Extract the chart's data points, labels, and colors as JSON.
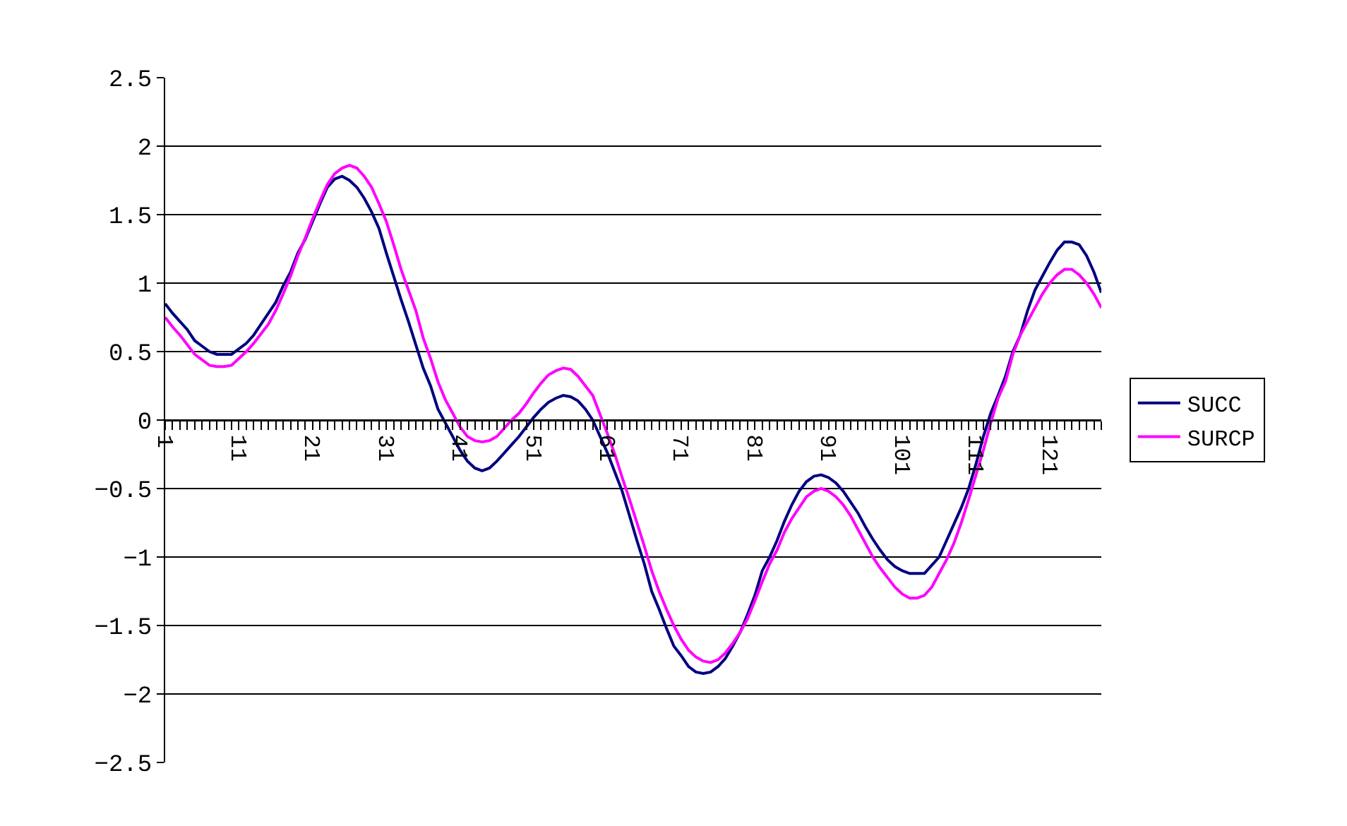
{
  "chart_data": {
    "type": "line",
    "categories": [
      "1",
      null,
      null,
      null,
      null,
      null,
      null,
      null,
      null,
      null,
      "11",
      null,
      null,
      null,
      null,
      null,
      null,
      null,
      null,
      null,
      "21",
      null,
      null,
      null,
      null,
      null,
      null,
      null,
      null,
      null,
      "31",
      null,
      null,
      null,
      null,
      null,
      null,
      null,
      null,
      null,
      "41",
      null,
      null,
      null,
      null,
      null,
      null,
      null,
      null,
      null,
      "51",
      null,
      null,
      null,
      null,
      null,
      null,
      null,
      null,
      null,
      "61",
      null,
      null,
      null,
      null,
      null,
      null,
      null,
      null,
      null,
      "71",
      null,
      null,
      null,
      null,
      null,
      null,
      null,
      null,
      null,
      "81",
      null,
      null,
      null,
      null,
      null,
      null,
      null,
      null,
      null,
      "91",
      null,
      null,
      null,
      null,
      null,
      null,
      null,
      null,
      null,
      "101",
      null,
      null,
      null,
      null,
      null,
      null,
      null,
      null,
      null,
      "111",
      null,
      null,
      null,
      null,
      null,
      null,
      null,
      null,
      null,
      "121",
      null,
      null,
      null,
      null,
      null,
      null,
      null
    ],
    "series": [
      {
        "name": "SUCC",
        "color": "#000080",
        "values": [
          0.85,
          0.78,
          0.72,
          0.66,
          0.58,
          0.54,
          0.5,
          0.48,
          0.48,
          0.48,
          0.52,
          0.56,
          0.62,
          0.7,
          0.78,
          0.86,
          0.98,
          1.08,
          1.22,
          1.32,
          1.45,
          1.58,
          1.7,
          1.76,
          1.78,
          1.75,
          1.7,
          1.62,
          1.52,
          1.4,
          1.22,
          1.05,
          0.88,
          0.72,
          0.55,
          0.38,
          0.25,
          0.08,
          -0.02,
          -0.12,
          -0.22,
          -0.3,
          -0.35,
          -0.37,
          -0.35,
          -0.3,
          -0.24,
          -0.18,
          -0.12,
          -0.05,
          0.02,
          0.08,
          0.13,
          0.16,
          0.18,
          0.17,
          0.14,
          0.08,
          0.0,
          -0.12,
          -0.24,
          -0.38,
          -0.52,
          -0.7,
          -0.88,
          -1.05,
          -1.25,
          -1.38,
          -1.52,
          -1.65,
          -1.72,
          -1.8,
          -1.84,
          -1.85,
          -1.84,
          -1.8,
          -1.74,
          -1.65,
          -1.55,
          -1.42,
          -1.28,
          -1.1,
          -1.0,
          -0.88,
          -0.74,
          -0.62,
          -0.52,
          -0.45,
          -0.41,
          -0.4,
          -0.42,
          -0.46,
          -0.52,
          -0.6,
          -0.68,
          -0.78,
          -0.87,
          -0.95,
          -1.02,
          -1.07,
          -1.1,
          -1.12,
          -1.12,
          -1.12,
          -1.06,
          -1.0,
          -0.88,
          -0.76,
          -0.64,
          -0.5,
          -0.32,
          -0.12,
          0.05,
          0.18,
          0.32,
          0.5,
          0.62,
          0.8,
          0.95,
          1.05,
          1.15,
          1.24,
          1.3,
          1.3,
          1.28,
          1.2,
          1.08,
          0.93
        ]
      },
      {
        "name": "SURCP",
        "color": "#ff00ff",
        "values": [
          0.75,
          0.68,
          0.62,
          0.55,
          0.48,
          0.44,
          0.4,
          0.39,
          0.39,
          0.4,
          0.45,
          0.5,
          0.56,
          0.63,
          0.7,
          0.8,
          0.92,
          1.05,
          1.2,
          1.33,
          1.47,
          1.6,
          1.72,
          1.8,
          1.84,
          1.86,
          1.84,
          1.78,
          1.7,
          1.58,
          1.45,
          1.28,
          1.1,
          0.95,
          0.8,
          0.6,
          0.45,
          0.28,
          0.15,
          0.05,
          -0.05,
          -0.12,
          -0.15,
          -0.16,
          -0.15,
          -0.12,
          -0.06,
          0.0,
          0.05,
          0.12,
          0.2,
          0.27,
          0.33,
          0.36,
          0.38,
          0.37,
          0.32,
          0.25,
          0.18,
          0.04,
          -0.1,
          -0.25,
          -0.42,
          -0.58,
          -0.75,
          -0.92,
          -1.1,
          -1.25,
          -1.38,
          -1.5,
          -1.6,
          -1.68,
          -1.73,
          -1.76,
          -1.77,
          -1.75,
          -1.7,
          -1.63,
          -1.55,
          -1.45,
          -1.32,
          -1.18,
          -1.05,
          -0.95,
          -0.82,
          -0.72,
          -0.64,
          -0.56,
          -0.52,
          -0.5,
          -0.52,
          -0.56,
          -0.62,
          -0.7,
          -0.8,
          -0.9,
          -1.0,
          -1.08,
          -1.15,
          -1.22,
          -1.27,
          -1.3,
          -1.3,
          -1.28,
          -1.22,
          -1.12,
          -1.02,
          -0.9,
          -0.75,
          -0.58,
          -0.4,
          -0.22,
          -0.02,
          0.16,
          0.28,
          0.48,
          0.62,
          0.72,
          0.82,
          0.92,
          1.0,
          1.06,
          1.1,
          1.1,
          1.06,
          1.0,
          0.92,
          0.82
        ]
      }
    ],
    "ylim": [
      -2.5,
      2.5
    ],
    "yticks": [
      {
        "value": -2.5,
        "label": "−2.5"
      },
      {
        "value": -2,
        "label": "−2"
      },
      {
        "value": -1.5,
        "label": "−1.5"
      },
      {
        "value": -1,
        "label": "−1"
      },
      {
        "value": -0.5,
        "label": "−0.5"
      },
      0,
      0.5,
      1,
      1.5,
      2,
      2.5
    ],
    "grid": "y",
    "legend": "right",
    "marker": "none",
    "line_style": "solid"
  }
}
